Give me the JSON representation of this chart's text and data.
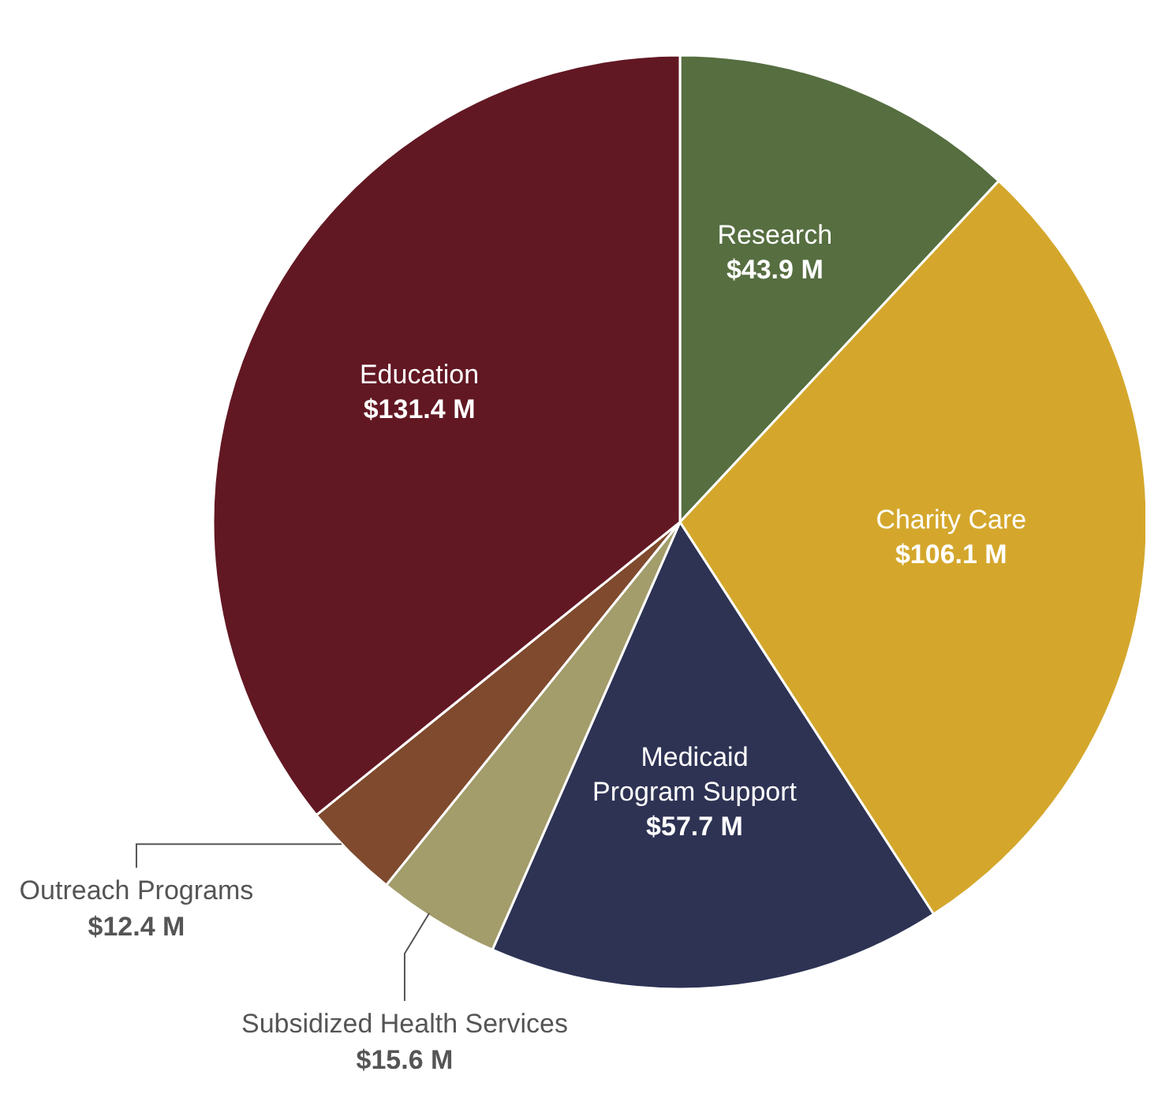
{
  "chart_data": {
    "type": "pie",
    "categories": [
      "Research",
      "Charity Care",
      "Medicaid Program Support",
      "Subsidized Health Services",
      "Outreach Programs",
      "Education"
    ],
    "values": [
      43.9,
      106.1,
      57.7,
      15.6,
      12.4,
      131.4
    ],
    "colors": [
      "#566e40",
      "#d4a72c",
      "#2e3354",
      "#a39c6b",
      "#7f4a2e",
      "#621823"
    ],
    "value_labels": [
      "$43.9 M",
      "$106.1 M",
      "$57.7 M",
      "$15.6 M",
      "$12.4 M",
      "$131.4 M"
    ],
    "legend": false
  }
}
